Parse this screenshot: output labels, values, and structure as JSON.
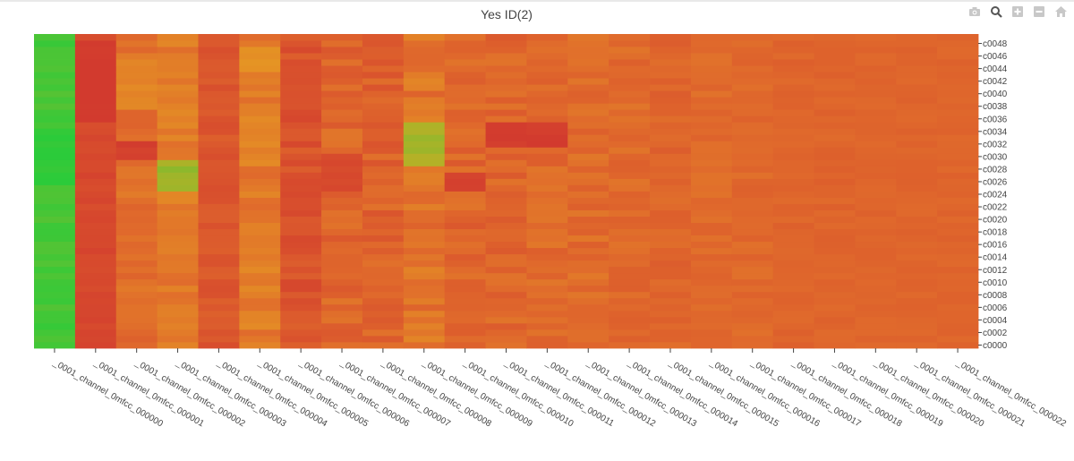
{
  "modebar": {
    "icons": [
      "camera-icon",
      "zoom-icon",
      "zoom-in-icon",
      "zoom-out-icon",
      "home-icon"
    ]
  },
  "chart_data": {
    "type": "heatmap",
    "title": "Yes ID(2)",
    "xlabel": "",
    "ylabel": "",
    "x": [
      "_0001_channel_0mfcc_000000",
      "_0001_channel_0mfcc_000001",
      "_0001_channel_0mfcc_000002",
      "_0001_channel_0mfcc_000003",
      "_0001_channel_0mfcc_000004",
      "_0001_channel_0mfcc_000005",
      "_0001_channel_0mfcc_000006",
      "_0001_channel_0mfcc_000007",
      "_0001_channel_0mfcc_000008",
      "_0001_channel_0mfcc_000009",
      "_0001_channel_0mfcc_000010",
      "_0001_channel_0mfcc_000011",
      "_0001_channel_0mfcc_000012",
      "_0001_channel_0mfcc_000013",
      "_0001_channel_0mfcc_000014",
      "_0001_channel_0mfcc_000015",
      "_0001_channel_0mfcc_000016",
      "_0001_channel_0mfcc_000017",
      "_0001_channel_0mfcc_000018",
      "_0001_channel_0mfcc_000019",
      "_0001_channel_0mfcc_000020",
      "_0001_channel_0mfcc_000021",
      "_0001_channel_0mfcc_000022"
    ],
    "y_tick_labels": [
      "c0000",
      "c0002",
      "c0004",
      "c0006",
      "c0008",
      "c0010",
      "c0012",
      "c0014",
      "c0016",
      "c0018",
      "c0020",
      "c0022",
      "c0024",
      "c0026",
      "c0028",
      "c0030",
      "c0032",
      "c0034",
      "c0036",
      "c0038",
      "c0040",
      "c0042",
      "c0044",
      "c0046",
      "c0048"
    ],
    "y_range": [
      "c0000",
      "c0048"
    ],
    "y_axis_side": "right",
    "colorscale": [
      "#d23a2e",
      "#e06a2c",
      "#e7a720",
      "#2bcb3a"
    ],
    "color_range": [
      0.0,
      1.0
    ],
    "column_profile": [
      0.95,
      0.1,
      0.35,
      0.42,
      0.2,
      0.42,
      0.18,
      0.3,
      0.28,
      0.38,
      0.3,
      0.3,
      0.33,
      0.34,
      0.33,
      0.3,
      0.33,
      0.32,
      0.3,
      0.3,
      0.3,
      0.3,
      0.3
    ],
    "column_variation": [
      0.03,
      0.04,
      0.08,
      0.08,
      0.07,
      0.09,
      0.09,
      0.1,
      0.1,
      0.1,
      0.09,
      0.09,
      0.08,
      0.08,
      0.07,
      0.06,
      0.05,
      0.05,
      0.04,
      0.04,
      0.03,
      0.03,
      0.03
    ],
    "features": [
      {
        "columns": [
          0,
          0
        ],
        "rows": [
          "c0026",
          "c0034"
        ],
        "value": 1.0
      },
      {
        "columns": [
          1,
          1
        ],
        "rows": [
          "c0036",
          "c0048"
        ],
        "value": 0.0
      },
      {
        "columns": [
          2,
          2
        ],
        "rows": [
          "c0038",
          "c0045"
        ],
        "value": 0.48
      },
      {
        "columns": [
          2,
          2
        ],
        "rows": [
          "c0030",
          "c0032"
        ],
        "value": 0.04
      },
      {
        "columns": [
          3,
          3
        ],
        "rows": [
          "c0025",
          "c0029"
        ],
        "value": 0.8
      },
      {
        "columns": [
          5,
          5
        ],
        "rows": [
          "c0044",
          "c0047"
        ],
        "value": 0.55
      },
      {
        "columns": [
          6,
          6
        ],
        "rows": [
          "c0038",
          "c0045"
        ],
        "value": 0.16
      },
      {
        "columns": [
          7,
          7
        ],
        "rows": [
          "c0025",
          "c0030"
        ],
        "value": 0.1
      },
      {
        "columns": [
          9,
          9
        ],
        "rows": [
          "c0029",
          "c0035"
        ],
        "value": 0.78
      },
      {
        "columns": [
          10,
          10
        ],
        "rows": [
          "c0025",
          "c0027"
        ],
        "value": 0.04
      },
      {
        "columns": [
          11,
          12
        ],
        "rows": [
          "c0032",
          "c0035"
        ],
        "value": 0.02
      }
    ]
  }
}
